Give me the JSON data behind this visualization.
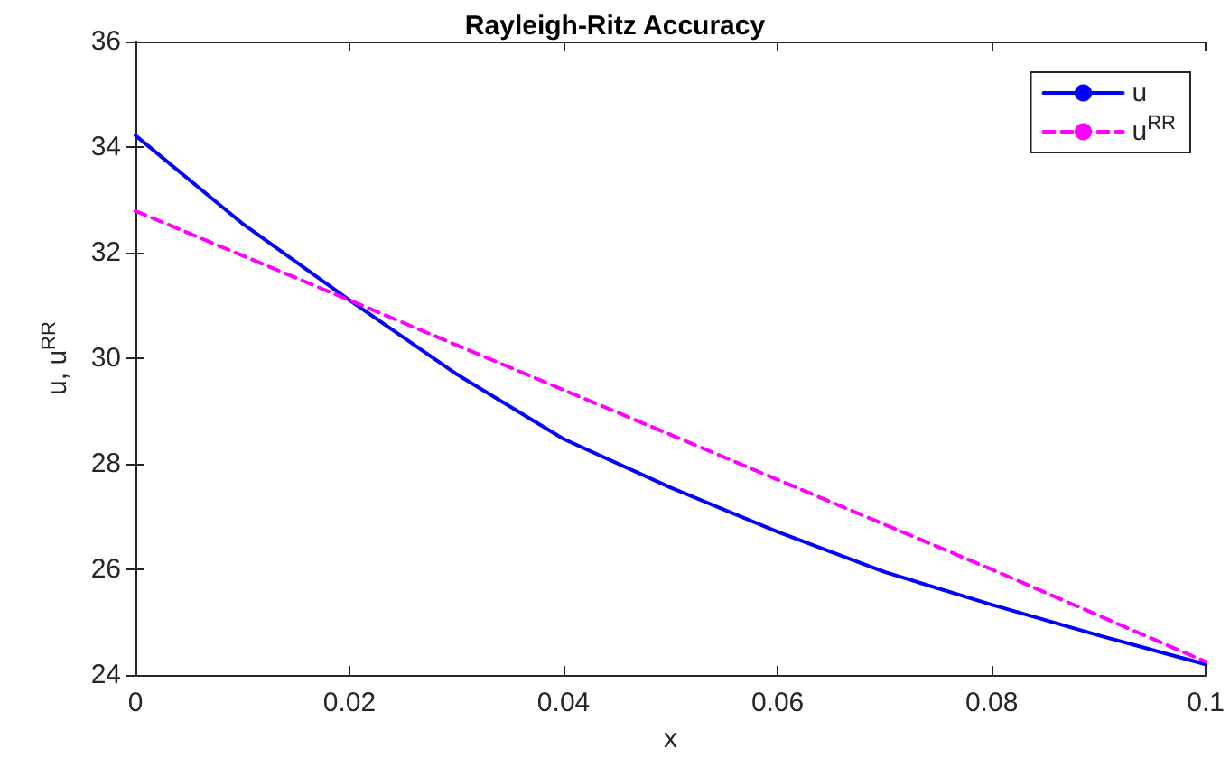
{
  "chart_data": {
    "type": "line",
    "title": "Rayleigh-Ritz Accuracy",
    "xlabel": "x",
    "ylabel": "u, u$^{RR}$",
    "x": [
      0,
      0.01,
      0.02,
      0.03,
      0.04,
      0.05,
      0.06,
      0.07,
      0.08,
      0.09,
      0.1
    ],
    "series": [
      {
        "name": "u",
        "color": "#0000ff",
        "line_style": "solid",
        "values": [
          34.22,
          32.55,
          31.1,
          29.7,
          28.47,
          27.55,
          26.71,
          25.95,
          25.33,
          24.75,
          24.2
        ]
      },
      {
        "name": "u$^{RR}$",
        "color": "#ff00ff",
        "line_style": "dashed",
        "x": [
          0,
          0.02,
          0.04,
          0.06,
          0.08,
          0.1
        ],
        "values": [
          32.79,
          31.1,
          29.4,
          27.7,
          26.0,
          24.25
        ]
      }
    ],
    "xlim": [
      0,
      0.1
    ],
    "xticks": [
      0,
      0.02,
      0.04,
      0.06,
      0.08,
      0.1
    ],
    "ylim": [
      24,
      36
    ],
    "yticks": [
      24,
      26,
      28,
      30,
      32,
      34,
      36
    ],
    "grid": false,
    "legend": "top right",
    "marker": "none"
  }
}
